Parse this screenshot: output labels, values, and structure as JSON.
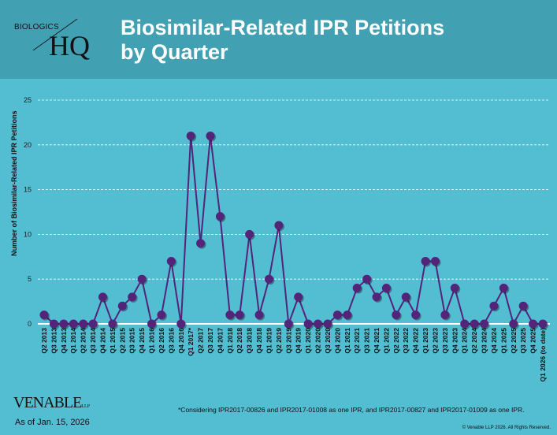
{
  "header": {
    "logo_text": "BIOLOGICS HQ",
    "logo_top": "BIOLOGICS",
    "logo_main": "HQ",
    "title_line1": "Biosimilar-Related IPR Petitions",
    "title_line2": "by Quarter"
  },
  "colors": {
    "header_bg": "#42a0b3",
    "plot_bg": "#53bdd1",
    "line": "#54237a",
    "grid": "#ffffff"
  },
  "chart_data": {
    "type": "line",
    "title": "Biosimilar-Related IPR Petitions by Quarter",
    "xlabel": "",
    "ylabel": "Number of Biosimilar-Related IPR Petitions",
    "ylim": [
      0,
      25
    ],
    "yticks": [
      0,
      5,
      10,
      15,
      20,
      25
    ],
    "grid": "horizontal dashed",
    "categories": [
      "Q2 2013",
      "Q3 2013",
      "Q4 2013",
      "Q1 2014",
      "Q2 2014",
      "Q3 2014",
      "Q4 2014",
      "Q1 2015",
      "Q2 2015",
      "Q3 2015",
      "Q4 2015",
      "Q1 2016",
      "Q2 2016",
      "Q3 2016",
      "Q4 2016",
      "Q1 2017*",
      "Q2 2017",
      "Q3 2017",
      "Q4 2017",
      "Q1 2018",
      "Q2 2018",
      "Q3 2018",
      "Q4 2018",
      "Q1 2019",
      "Q2 2019",
      "Q3 2019",
      "Q4 2019",
      "Q1 2020",
      "Q2 2020",
      "Q3 2020",
      "Q4 2020",
      "Q1 2021",
      "Q2 2021",
      "Q3 2021",
      "Q4 2021",
      "Q1 2022",
      "Q2 2022",
      "Q3 2022",
      "Q4 2022",
      "Q1 2023",
      "Q2 2023",
      "Q3 2023",
      "Q4 2023",
      "Q1 2024",
      "Q2 2024",
      "Q3 2024",
      "Q4 2024",
      "Q1 2025",
      "Q2 2025",
      "Q3 2025",
      "Q4 2025",
      "Q1 2026 (to date)"
    ],
    "values": [
      1,
      0,
      0,
      0,
      0,
      0,
      3,
      0,
      2,
      3,
      5,
      0,
      1,
      7,
      0,
      21,
      9,
      21,
      12,
      1,
      1,
      10,
      1,
      5,
      11,
      0,
      3,
      0,
      0,
      0,
      1,
      1,
      4,
      5,
      3,
      4,
      1,
      3,
      1,
      7,
      7,
      1,
      4,
      0,
      0,
      0,
      2,
      4,
      0,
      2,
      0,
      0
    ]
  },
  "footer": {
    "firm": "VENABLE",
    "firm_suffix": "LLP",
    "as_of": "As of Jan. 15, 2026",
    "footnote": "*Considering IPR2017-00826 and IPR2017-01008 as one IPR, and IPR2017-00827 and IPR2017-01009 as one IPR.",
    "copyright": "© Venable LLP 2026. All Rights Reserved."
  }
}
